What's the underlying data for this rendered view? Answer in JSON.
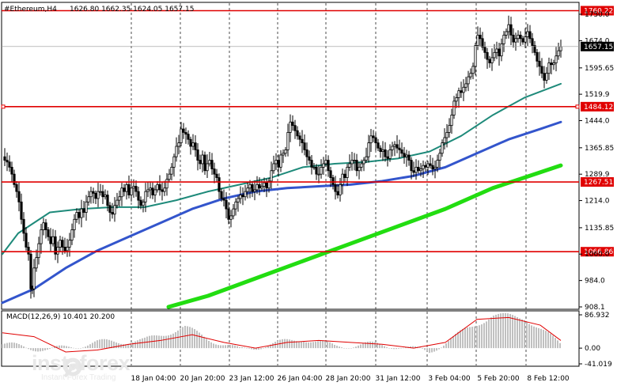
{
  "header": {
    "symbol": "#Ethereum,H4",
    "ohlc": "1626.80 1662.35 1624.05 1657.15"
  },
  "chart_data": {
    "type": "candlestick",
    "symbol": "#Ethereum",
    "timeframe": "H4",
    "price_axis": {
      "min": 908.1,
      "max": 1750.0,
      "ticks": [
        1750.0,
        1674.0,
        1595.65,
        1519.9,
        1444.0,
        1365.85,
        1289.9,
        1214.0,
        1135.85,
        1060.0,
        984.0,
        908.1
      ]
    },
    "time_labels": [
      "18 Jan 04:00",
      "20 Jan 20:00",
      "23 Jan 12:00",
      "26 Jan 04:00",
      "28 Jan 20:00",
      "31 Jan 12:00",
      "3 Feb 04:00",
      "5 Feb 20:00",
      "8 Feb 12:00"
    ],
    "horizontal_levels": [
      {
        "value": 1760.22,
        "label": "1760.22",
        "color": "#e00000"
      },
      {
        "value": 1484.12,
        "label": "1484.12",
        "color": "#e00000"
      },
      {
        "value": 1267.51,
        "label": "1267.51",
        "color": "#e00000"
      },
      {
        "value": 1066.86,
        "label": "1066.86",
        "color": "#e00000"
      }
    ],
    "current_price": {
      "value": 1657.15,
      "label": "1657.15"
    },
    "close_path": [
      [
        0,
        1340
      ],
      [
        3,
        1330
      ],
      [
        6,
        1325
      ],
      [
        9,
        1310
      ],
      [
        12,
        1290
      ],
      [
        15,
        1260
      ],
      [
        18,
        1240
      ],
      [
        21,
        1210
      ],
      [
        24,
        1160
      ],
      [
        27,
        1120
      ],
      [
        30,
        1080
      ],
      [
        33,
        1060
      ],
      [
        36,
        960
      ],
      [
        38,
        960
      ],
      [
        40,
        1020
      ],
      [
        43,
        1050
      ],
      [
        46,
        1090
      ],
      [
        49,
        1130
      ],
      [
        52,
        1150
      ],
      [
        55,
        1130
      ],
      [
        58,
        1110
      ],
      [
        61,
        1090
      ],
      [
        64,
        1110
      ],
      [
        67,
        1060
      ],
      [
        70,
        1080
      ],
      [
        73,
        1100
      ],
      [
        76,
        1080
      ],
      [
        79,
        1070
      ],
      [
        82,
        1080
      ],
      [
        85,
        1100
      ],
      [
        88,
        1130
      ],
      [
        91,
        1160
      ],
      [
        94,
        1180
      ],
      [
        97,
        1165
      ],
      [
        100,
        1190
      ],
      [
        103,
        1180
      ],
      [
        106,
        1210
      ],
      [
        109,
        1225
      ],
      [
        112,
        1240
      ],
      [
        115,
        1235
      ],
      [
        118,
        1220
      ],
      [
        121,
        1240
      ],
      [
        124,
        1240
      ],
      [
        127,
        1225
      ],
      [
        130,
        1230
      ],
      [
        133,
        1200
      ],
      [
        136,
        1180
      ],
      [
        139,
        1175
      ],
      [
        142,
        1200
      ],
      [
        145,
        1215
      ],
      [
        148,
        1225
      ],
      [
        151,
        1250
      ],
      [
        154,
        1240
      ],
      [
        157,
        1260
      ],
      [
        160,
        1230
      ],
      [
        163,
        1250
      ],
      [
        166,
        1255
      ],
      [
        169,
        1240
      ],
      [
        172,
        1215
      ],
      [
        175,
        1200
      ],
      [
        178,
        1210
      ],
      [
        181,
        1240
      ],
      [
        184,
        1245
      ],
      [
        187,
        1250
      ],
      [
        190,
        1230
      ],
      [
        193,
        1245
      ],
      [
        196,
        1260
      ],
      [
        199,
        1245
      ],
      [
        202,
        1240
      ],
      [
        205,
        1250
      ],
      [
        208,
        1275
      ],
      [
        211,
        1290
      ],
      [
        214,
        1310
      ],
      [
        217,
        1340
      ],
      [
        220,
        1370
      ],
      [
        223,
        1380
      ],
      [
        226,
        1420
      ],
      [
        229,
        1410
      ],
      [
        232,
        1405
      ],
      [
        235,
        1390
      ],
      [
        238,
        1370
      ],
      [
        241,
        1380
      ],
      [
        244,
        1360
      ],
      [
        247,
        1330
      ],
      [
        250,
        1320
      ],
      [
        253,
        1345
      ],
      [
        256,
        1300
      ],
      [
        259,
        1320
      ],
      [
        262,
        1330
      ],
      [
        265,
        1305
      ],
      [
        268,
        1290
      ],
      [
        271,
        1280
      ],
      [
        274,
        1240
      ],
      [
        277,
        1220
      ],
      [
        280,
        1215
      ],
      [
        283,
        1190
      ],
      [
        286,
        1160
      ],
      [
        289,
        1170
      ],
      [
        292,
        1190
      ],
      [
        295,
        1210
      ],
      [
        298,
        1220
      ],
      [
        301,
        1230
      ],
      [
        304,
        1225
      ],
      [
        307,
        1240
      ],
      [
        310,
        1250
      ],
      [
        313,
        1260
      ],
      [
        316,
        1240
      ],
      [
        319,
        1245
      ],
      [
        322,
        1260
      ],
      [
        325,
        1250
      ],
      [
        328,
        1255
      ],
      [
        331,
        1265
      ],
      [
        334,
        1250
      ],
      [
        337,
        1270
      ],
      [
        340,
        1300
      ],
      [
        343,
        1320
      ],
      [
        346,
        1330
      ],
      [
        349,
        1310
      ],
      [
        352,
        1345
      ],
      [
        355,
        1350
      ],
      [
        358,
        1360
      ],
      [
        361,
        1410
      ],
      [
        364,
        1440
      ],
      [
        367,
        1430
      ],
      [
        370,
        1415
      ],
      [
        373,
        1400
      ],
      [
        376,
        1390
      ],
      [
        379,
        1380
      ],
      [
        382,
        1360
      ],
      [
        385,
        1340
      ],
      [
        388,
        1330
      ],
      [
        391,
        1310
      ],
      [
        394,
        1310
      ],
      [
        397,
        1290
      ],
      [
        400,
        1290
      ],
      [
        403,
        1310
      ],
      [
        406,
        1320
      ],
      [
        409,
        1330
      ],
      [
        412,
        1300
      ],
      [
        415,
        1280
      ],
      [
        418,
        1260
      ],
      [
        421,
        1240
      ],
      [
        424,
        1230
      ],
      [
        427,
        1260
      ],
      [
        430,
        1290
      ],
      [
        433,
        1280
      ],
      [
        436,
        1310
      ],
      [
        439,
        1320
      ],
      [
        442,
        1330
      ],
      [
        445,
        1330
      ],
      [
        448,
        1300
      ],
      [
        451,
        1310
      ],
      [
        454,
        1320
      ],
      [
        457,
        1330
      ],
      [
        460,
        1340
      ],
      [
        463,
        1380
      ],
      [
        466,
        1400
      ],
      [
        469,
        1395
      ],
      [
        472,
        1380
      ],
      [
        475,
        1365
      ],
      [
        478,
        1355
      ],
      [
        481,
        1360
      ],
      [
        484,
        1340
      ],
      [
        487,
        1335
      ],
      [
        490,
        1360
      ],
      [
        493,
        1370
      ],
      [
        496,
        1375
      ],
      [
        499,
        1365
      ],
      [
        502,
        1360
      ],
      [
        505,
        1350
      ],
      [
        508,
        1340
      ],
      [
        511,
        1345
      ],
      [
        514,
        1330
      ],
      [
        517,
        1300
      ],
      [
        520,
        1295
      ],
      [
        523,
        1310
      ],
      [
        526,
        1300
      ],
      [
        529,
        1305
      ],
      [
        532,
        1315
      ],
      [
        535,
        1310
      ],
      [
        538,
        1320
      ],
      [
        541,
        1315
      ],
      [
        544,
        1305
      ],
      [
        547,
        1310
      ],
      [
        550,
        1330
      ],
      [
        553,
        1350
      ],
      [
        556,
        1380
      ],
      [
        559,
        1395
      ],
      [
        562,
        1410
      ],
      [
        565,
        1430
      ],
      [
        568,
        1460
      ],
      [
        571,
        1500
      ],
      [
        574,
        1510
      ],
      [
        577,
        1530
      ],
      [
        580,
        1525
      ],
      [
        583,
        1540
      ],
      [
        586,
        1550
      ],
      [
        589,
        1570
      ],
      [
        592,
        1580
      ],
      [
        595,
        1600
      ],
      [
        598,
        1660
      ],
      [
        601,
        1690
      ],
      [
        604,
        1680
      ],
      [
        607,
        1655
      ],
      [
        610,
        1640
      ],
      [
        613,
        1620
      ],
      [
        616,
        1610
      ],
      [
        619,
        1625
      ],
      [
        622,
        1640
      ],
      [
        625,
        1650
      ],
      [
        628,
        1630
      ],
      [
        631,
        1665
      ],
      [
        634,
        1690
      ],
      [
        637,
        1700
      ],
      [
        640,
        1720
      ],
      [
        643,
        1690
      ],
      [
        646,
        1670
      ],
      [
        649,
        1680
      ],
      [
        652,
        1690
      ],
      [
        655,
        1680
      ],
      [
        658,
        1670
      ],
      [
        661,
        1685
      ],
      [
        664,
        1700
      ],
      [
        667,
        1680
      ],
      [
        670,
        1660
      ],
      [
        673,
        1640
      ],
      [
        676,
        1615
      ],
      [
        679,
        1600
      ],
      [
        682,
        1580
      ],
      [
        685,
        1560
      ],
      [
        688,
        1580
      ],
      [
        691,
        1610
      ],
      [
        694,
        1605
      ],
      [
        697,
        1610
      ],
      [
        700,
        1630
      ],
      [
        703,
        1645
      ],
      [
        706,
        1657
      ]
    ],
    "moving_averages": [
      {
        "color": "#1e8a7a",
        "points": [
          [
            0,
            1060
          ],
          [
            20,
            1120
          ],
          [
            60,
            1180
          ],
          [
            100,
            1190
          ],
          [
            140,
            1195
          ],
          [
            180,
            1195
          ],
          [
            220,
            1215
          ],
          [
            260,
            1240
          ],
          [
            300,
            1260
          ],
          [
            340,
            1280
          ],
          [
            380,
            1310
          ],
          [
            420,
            1320
          ],
          [
            460,
            1325
          ],
          [
            500,
            1335
          ],
          [
            540,
            1355
          ],
          [
            580,
            1400
          ],
          [
            620,
            1460
          ],
          [
            660,
            1510
          ],
          [
            706,
            1550
          ]
        ]
      },
      {
        "color": "#3355cc",
        "points": [
          [
            0,
            920
          ],
          [
            40,
            960
          ],
          [
            80,
            1020
          ],
          [
            120,
            1070
          ],
          [
            160,
            1110
          ],
          [
            200,
            1150
          ],
          [
            240,
            1190
          ],
          [
            280,
            1220
          ],
          [
            320,
            1240
          ],
          [
            360,
            1250
          ],
          [
            400,
            1255
          ],
          [
            440,
            1260
          ],
          [
            480,
            1270
          ],
          [
            520,
            1285
          ],
          [
            560,
            1310
          ],
          [
            600,
            1350
          ],
          [
            640,
            1390
          ],
          [
            680,
            1420
          ],
          [
            706,
            1440
          ]
        ]
      },
      {
        "color": "#22dd11",
        "points": [
          [
            210,
            908
          ],
          [
            260,
            940
          ],
          [
            320,
            990
          ],
          [
            380,
            1040
          ],
          [
            440,
            1090
          ],
          [
            500,
            1140
          ],
          [
            560,
            1190
          ],
          [
            620,
            1250
          ],
          [
            660,
            1280
          ],
          [
            706,
            1315
          ]
        ]
      }
    ],
    "macd": {
      "label": "MACD(12,26,9) 10.401 20.200",
      "ticks": [
        86.932,
        0.0,
        -41.019
      ],
      "range": [
        -41.019,
        86.932
      ],
      "histogram_points": [
        [
          0,
          10
        ],
        [
          60,
          -5
        ],
        [
          120,
          15
        ],
        [
          180,
          20
        ],
        [
          230,
          55
        ],
        [
          260,
          25
        ],
        [
          300,
          -5
        ],
        [
          340,
          10
        ],
        [
          380,
          25
        ],
        [
          420,
          5
        ],
        [
          460,
          10
        ],
        [
          500,
          5
        ],
        [
          540,
          -10
        ],
        [
          580,
          40
        ],
        [
          620,
          86
        ],
        [
          660,
          80
        ],
        [
          706,
          10
        ]
      ],
      "signal_points": [
        [
          0,
          40
        ],
        [
          40,
          30
        ],
        [
          80,
          -10
        ],
        [
          120,
          -5
        ],
        [
          160,
          10
        ],
        [
          200,
          20
        ],
        [
          240,
          35
        ],
        [
          280,
          15
        ],
        [
          320,
          0
        ],
        [
          360,
          15
        ],
        [
          400,
          20
        ],
        [
          440,
          15
        ],
        [
          480,
          10
        ],
        [
          520,
          0
        ],
        [
          560,
          15
        ],
        [
          600,
          75
        ],
        [
          640,
          80
        ],
        [
          680,
          60
        ],
        [
          706,
          20
        ]
      ]
    }
  },
  "branding": {
    "logo_text": "instaforex",
    "logo_sub": "Instant Forex Trading"
  }
}
